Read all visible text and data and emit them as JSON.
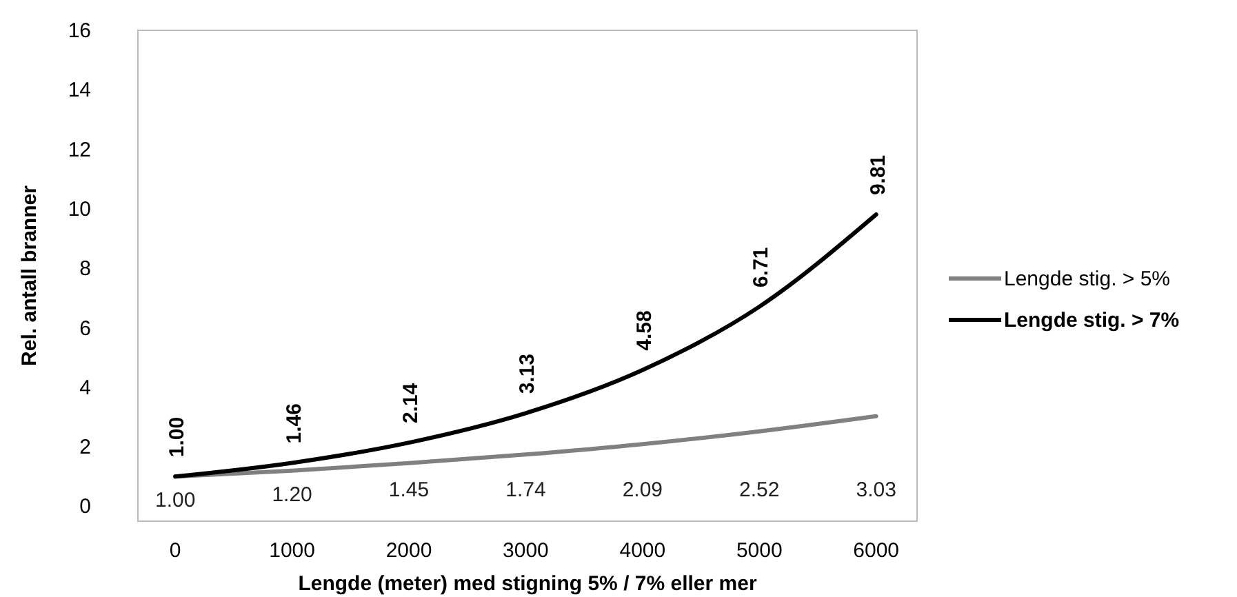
{
  "chart_data": {
    "type": "line",
    "xlabel": "Lengde (meter) med stigning  5% / 7% eller mer",
    "ylabel": "Rel. antall branner",
    "x": [
      0,
      1000,
      2000,
      3000,
      4000,
      5000,
      6000
    ],
    "xlim": [
      -320,
      6350
    ],
    "xticks": [
      0,
      1000,
      2000,
      3000,
      4000,
      5000,
      6000
    ],
    "ylim": [
      -0.5,
      16
    ],
    "yticks": [
      0,
      2,
      4,
      6,
      8,
      10,
      12,
      14,
      16
    ],
    "grid": false,
    "legend": "right",
    "marker": "none",
    "line_style": "solid",
    "series": [
      {
        "name": "Lengde stig. > 5%",
        "color": "#808080",
        "values": [
          1.0,
          1.2,
          1.45,
          1.74,
          2.09,
          2.52,
          3.03
        ],
        "value_labels": [
          "1.00",
          "1.20",
          "1.45",
          "1.74",
          "2.09",
          "2.52",
          "3.03"
        ]
      },
      {
        "name": "Lengde stig. > 7%",
        "color": "#000000",
        "values": [
          1.0,
          1.46,
          2.14,
          3.13,
          4.58,
          6.71,
          9.81
        ],
        "value_labels": [
          "1.00",
          "1.46",
          "2.14",
          "3.13",
          "4.58",
          "6.71",
          "9.81"
        ]
      }
    ]
  }
}
